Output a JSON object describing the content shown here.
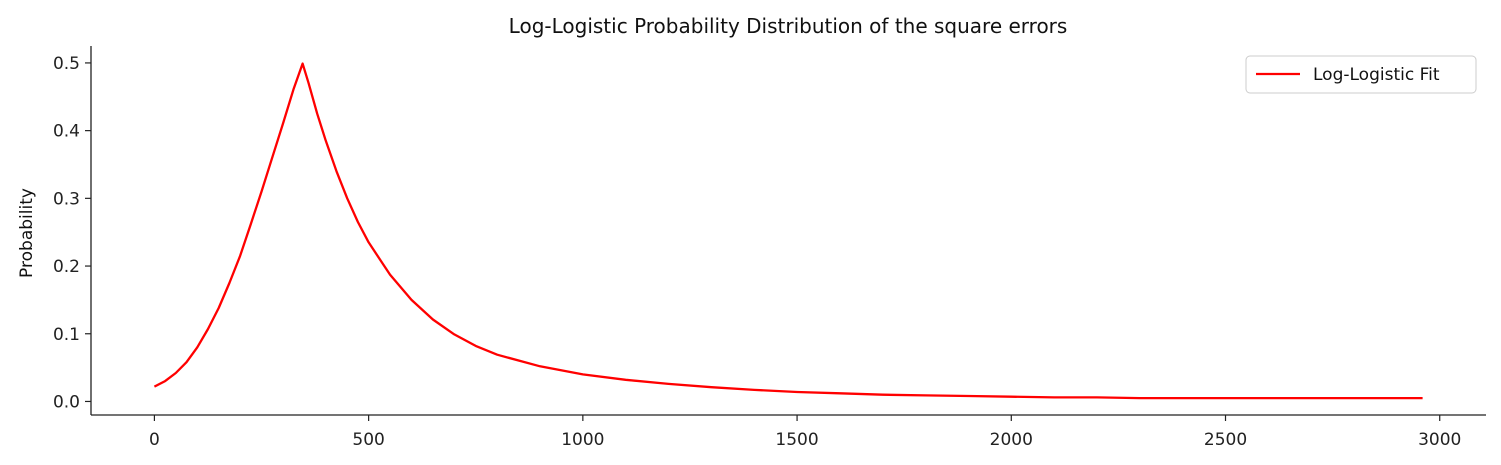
{
  "chart_data": {
    "type": "line",
    "title": "Log-Logistic Probability Distribution of the square errors",
    "xlabel": "",
    "ylabel": "Probability",
    "xlim": [
      -148,
      3108
    ],
    "ylim": [
      -0.02,
      0.525
    ],
    "x_ticks": [
      0,
      500,
      1000,
      1500,
      2000,
      2500,
      3000
    ],
    "y_ticks": [
      0.0,
      0.1,
      0.2,
      0.3,
      0.4,
      0.5
    ],
    "x_tick_labels": [
      "0",
      "500",
      "1000",
      "1500",
      "2000",
      "2500",
      "3000"
    ],
    "y_tick_labels": [
      "0.0",
      "0.1",
      "0.2",
      "0.3",
      "0.4",
      "0.5"
    ],
    "grid": false,
    "legend_position": "top-right",
    "series": [
      {
        "name": "Log-Logistic Fit",
        "color": "#ff0000",
        "x": [
          0,
          25,
          50,
          75,
          100,
          125,
          150,
          175,
          200,
          225,
          250,
          275,
          300,
          325,
          346,
          360,
          380,
          400,
          425,
          450,
          475,
          500,
          550,
          600,
          650,
          700,
          750,
          800,
          900,
          1000,
          1100,
          1200,
          1300,
          1400,
          1500,
          1600,
          1700,
          1800,
          1900,
          2000,
          2100,
          2200,
          2300,
          2400,
          2500,
          2600,
          2700,
          2800,
          2960
        ],
        "y": [
          0.022,
          0.03,
          0.042,
          0.058,
          0.08,
          0.107,
          0.138,
          0.175,
          0.215,
          0.262,
          0.31,
          0.36,
          0.41,
          0.462,
          0.499,
          0.47,
          0.425,
          0.385,
          0.34,
          0.3,
          0.265,
          0.235,
          0.187,
          0.15,
          0.121,
          0.099,
          0.082,
          0.069,
          0.052,
          0.04,
          0.032,
          0.026,
          0.021,
          0.017,
          0.014,
          0.012,
          0.01,
          0.009,
          0.008,
          0.007,
          0.006,
          0.006,
          0.005,
          0.005,
          0.005,
          0.005,
          0.005,
          0.005,
          0.005
        ]
      }
    ]
  }
}
